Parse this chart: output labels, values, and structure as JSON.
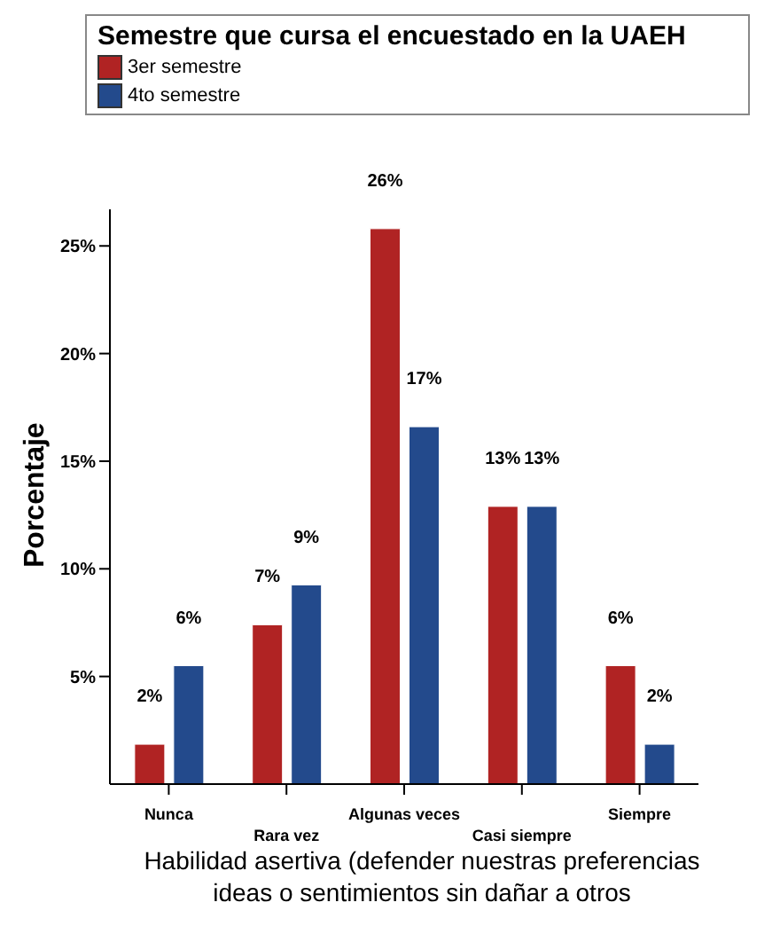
{
  "chart_data": {
    "type": "bar",
    "legend_title": "Semestre que cursa el encuestado en la UAEH",
    "xlabel": "Habilidad asertiva (defender nuestras preferencias\nideas o sentimientos sin dañar a otros",
    "ylabel": "Porcentaje",
    "categories": [
      "Nunca",
      "Rara vez",
      "Algunas veces",
      "Casi siempre",
      "Siempre"
    ],
    "series": [
      {
        "name": "3er semestre",
        "color": "#b02323",
        "values": [
          1.85,
          7.4,
          25.8,
          12.9,
          5.5
        ],
        "value_labels": [
          "2%",
          "7%",
          "26%",
          "13%",
          "6%"
        ]
      },
      {
        "name": "4to semestre",
        "color": "#234a8c",
        "values": [
          5.5,
          9.25,
          16.6,
          12.9,
          1.85
        ],
        "value_labels": [
          "6%",
          "9%",
          "17%",
          "13%",
          "2%"
        ]
      }
    ],
    "ylim": [
      0,
      26.7
    ],
    "yticks": [
      {
        "value": 5,
        "label": "5%"
      },
      {
        "value": 10,
        "label": "10%"
      },
      {
        "value": 15,
        "label": "15%"
      },
      {
        "value": 20,
        "label": "20%"
      },
      {
        "value": 25,
        "label": "25%"
      }
    ],
    "legend": "top"
  }
}
